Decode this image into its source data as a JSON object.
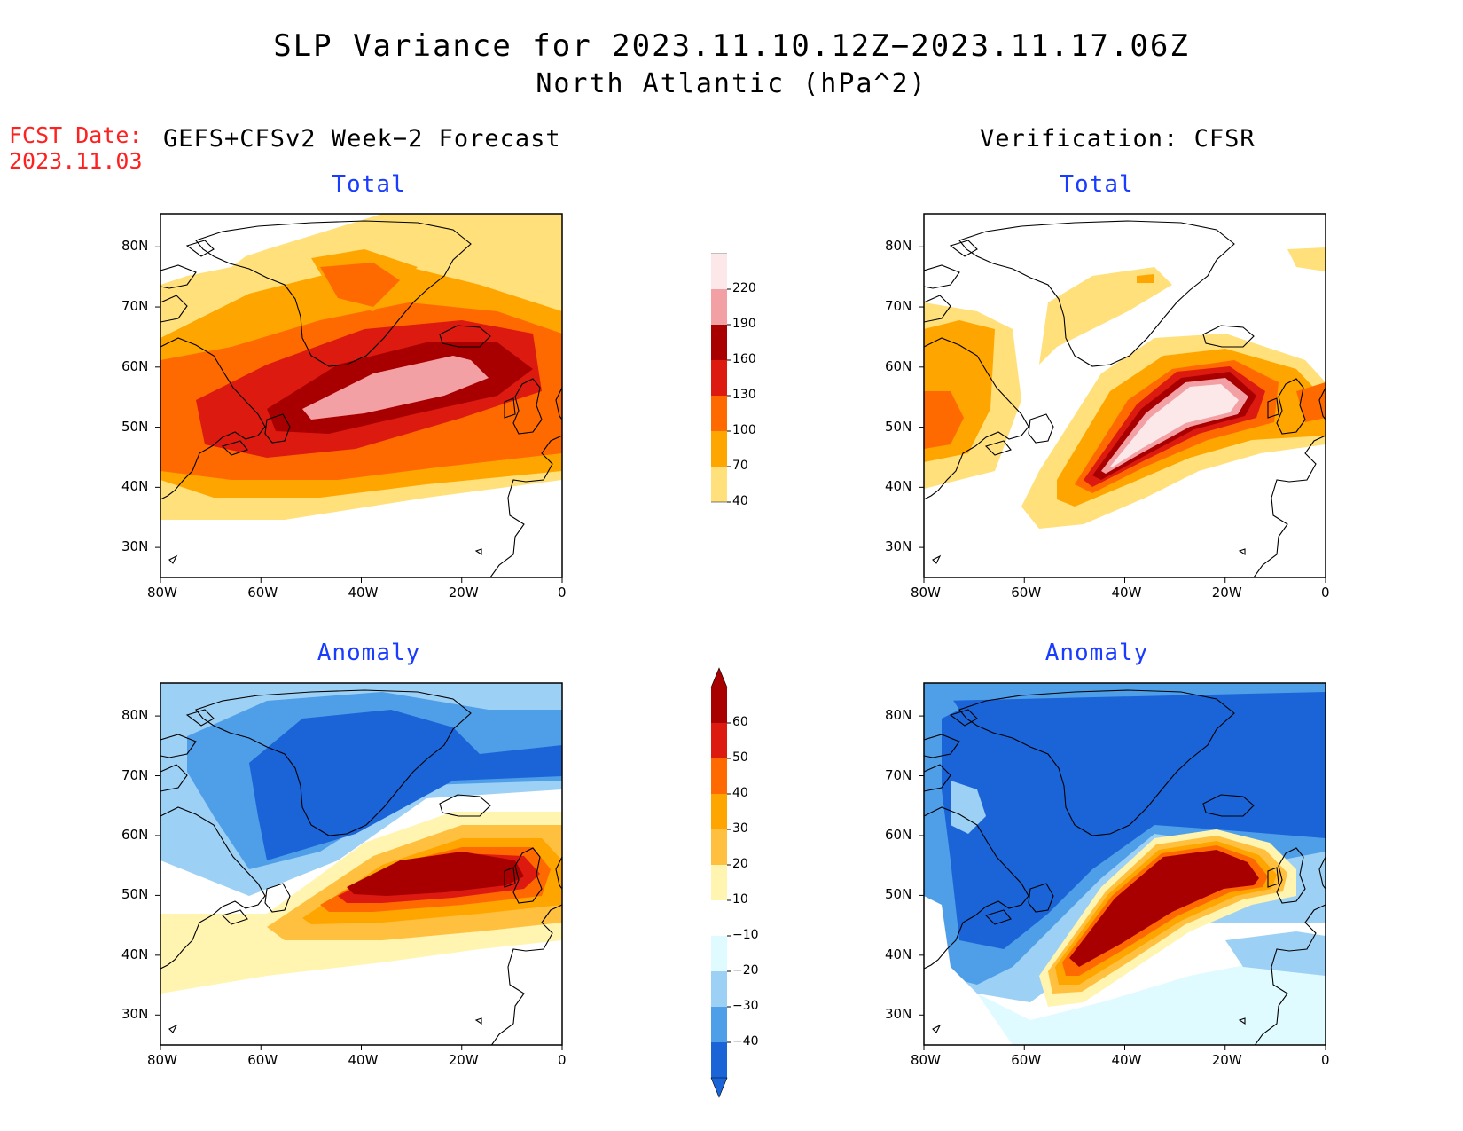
{
  "title": {
    "line1": "SLP Variance for 2023.11.10.12Z−2023.11.17.06Z",
    "line2": "North Atlantic (hPa^2)"
  },
  "fcst_date": {
    "label": "FCST Date:",
    "value": "2023.11.03"
  },
  "columns": {
    "left": "GEFS+CFSv2 Week−2 Forecast",
    "right": "Verification: CFSR"
  },
  "panels": {
    "top_left_title": "Total",
    "top_right_title": "Total",
    "bottom_left_title": "Anomaly",
    "bottom_right_title": "Anomaly"
  },
  "axes": {
    "lat_labels": [
      "80N",
      "70N",
      "60N",
      "50N",
      "40N",
      "30N"
    ],
    "lon_labels": [
      "80W",
      "60W",
      "40W",
      "20W",
      "0"
    ]
  },
  "colorbars": {
    "total": {
      "levels": [
        "220",
        "190",
        "160",
        "130",
        "100",
        "70",
        "40"
      ],
      "colors": [
        "#fce8e8",
        "#f2a0a4",
        "#a80000",
        "#dc1a10",
        "#ff6a00",
        "#ffa500",
        "#ffe07a"
      ]
    },
    "anomaly": {
      "levels": [
        "60",
        "50",
        "40",
        "30",
        "20",
        "10",
        "−10",
        "−20",
        "−30",
        "−40"
      ],
      "colors": [
        "#a80000",
        "#dc1a10",
        "#ff6a00",
        "#ffa500",
        "#ffc040",
        "#fff4b0",
        "#ffffff",
        "#e0fbff",
        "#9dd0f5",
        "#4f9ee8",
        "#1a64d8"
      ]
    }
  }
}
